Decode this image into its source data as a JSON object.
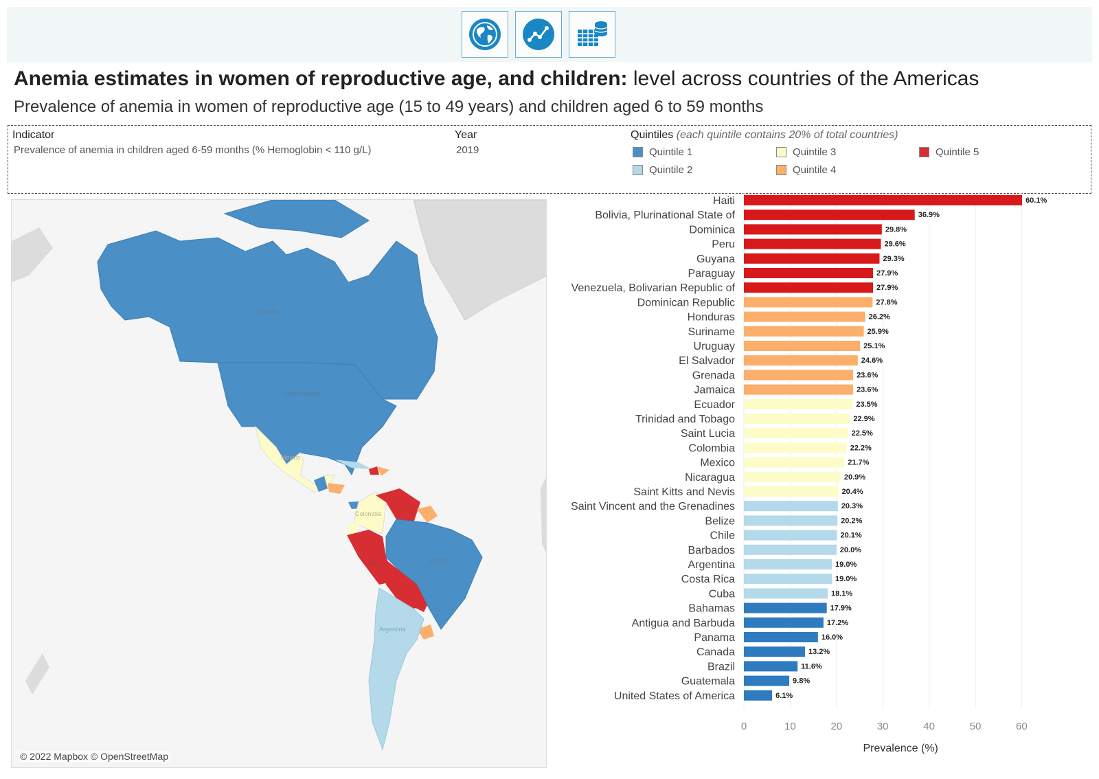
{
  "toolbar": {
    "buttons": [
      "globe-icon",
      "line-chart-icon",
      "table-database-icon"
    ]
  },
  "header": {
    "title_bold": "Anemia estimates in women of reproductive age, and children:",
    "title_rest": " level across countries of the Americas",
    "subtitle": "Prevalence of anemia in women of reproductive age (15 to 49 years) and children aged 6 to 59 months"
  },
  "filters": {
    "indicator_label": "Indicator",
    "indicator_value": "Prevalence of anemia in children aged 6-59 months (% Hemoglobin < 110 g/L)",
    "year_label": "Year",
    "year_value": "2019",
    "quintiles_label": "Quintiles",
    "quintiles_note": "(each quintile contains 20% of total countries)",
    "quintiles": [
      {
        "label": "Quintile 1",
        "color": "#4a8fc5"
      },
      {
        "label": "Quintile 2",
        "color": "#b3d9ea"
      },
      {
        "label": "Quintile 3",
        "color": "#fdfcc8"
      },
      {
        "label": "Quintile 4",
        "color": "#fcaf6b"
      },
      {
        "label": "Quintile 5",
        "color": "#d62e33"
      }
    ]
  },
  "map": {
    "credit": "© 2022 Mapbox © OpenStreetMap",
    "labels": [
      "Canada",
      "United States",
      "Mexico",
      "Colombia",
      "Brazil",
      "Peru",
      "Argentina"
    ]
  },
  "chart_data": {
    "type": "bar",
    "orientation": "horizontal",
    "xlabel": "Prevalence (%)",
    "xlim": [
      0,
      60
    ],
    "xticks": [
      0,
      10,
      20,
      30,
      40,
      50,
      60
    ],
    "quintile_colors": {
      "1": "#2f7bbf",
      "2": "#b3d9ea",
      "3": "#fdfcc8",
      "4": "#fcaf6b",
      "5": "#d7191c"
    },
    "categories": [
      "Haiti",
      "Bolivia, Plurinational State of",
      "Dominica",
      "Peru",
      "Guyana",
      "Paraguay",
      "Venezuela, Bolivarian Republic of",
      "Dominican Republic",
      "Honduras",
      "Suriname",
      "Uruguay",
      "El Salvador",
      "Grenada",
      "Jamaica",
      "Ecuador",
      "Trinidad and Tobago",
      "Saint Lucia",
      "Colombia",
      "Mexico",
      "Nicaragua",
      "Saint Kitts and Nevis",
      "Saint Vincent and the Grenadines",
      "Belize",
      "Chile",
      "Barbados",
      "Argentina",
      "Costa Rica",
      "Cuba",
      "Bahamas",
      "Antigua and Barbuda",
      "Panama",
      "Canada",
      "Brazil",
      "Guatemala",
      "United States of America"
    ],
    "values": [
      60.1,
      36.9,
      29.8,
      29.6,
      29.3,
      27.9,
      27.9,
      27.8,
      26.2,
      25.9,
      25.1,
      24.6,
      23.6,
      23.6,
      23.5,
      22.9,
      22.5,
      22.2,
      21.7,
      20.9,
      20.4,
      20.3,
      20.2,
      20.1,
      20.0,
      19.0,
      19.0,
      18.1,
      17.9,
      17.2,
      16.0,
      13.2,
      11.6,
      9.8,
      6.1
    ],
    "labels": [
      "60.1%",
      "36.9%",
      "29.8%",
      "29.6%",
      "29.3%",
      "27.9%",
      "27.9%",
      "27.8%",
      "26.2%",
      "25.9%",
      "25.1%",
      "24.6%",
      "23.6%",
      "23.6%",
      "23.5%",
      "22.9%",
      "22.5%",
      "22.2%",
      "21.7%",
      "20.9%",
      "20.4%",
      "20.3%",
      "20.2%",
      "20.1%",
      "20.0%",
      "19.0%",
      "19.0%",
      "18.1%",
      "17.9%",
      "17.2%",
      "16.0%",
      "13.2%",
      "11.6%",
      "9.8%",
      "6.1%"
    ],
    "quintile": [
      5,
      5,
      5,
      5,
      5,
      5,
      5,
      4,
      4,
      4,
      4,
      4,
      4,
      4,
      3,
      3,
      3,
      3,
      3,
      3,
      3,
      2,
      2,
      2,
      2,
      2,
      2,
      2,
      1,
      1,
      1,
      1,
      1,
      1,
      1
    ]
  }
}
